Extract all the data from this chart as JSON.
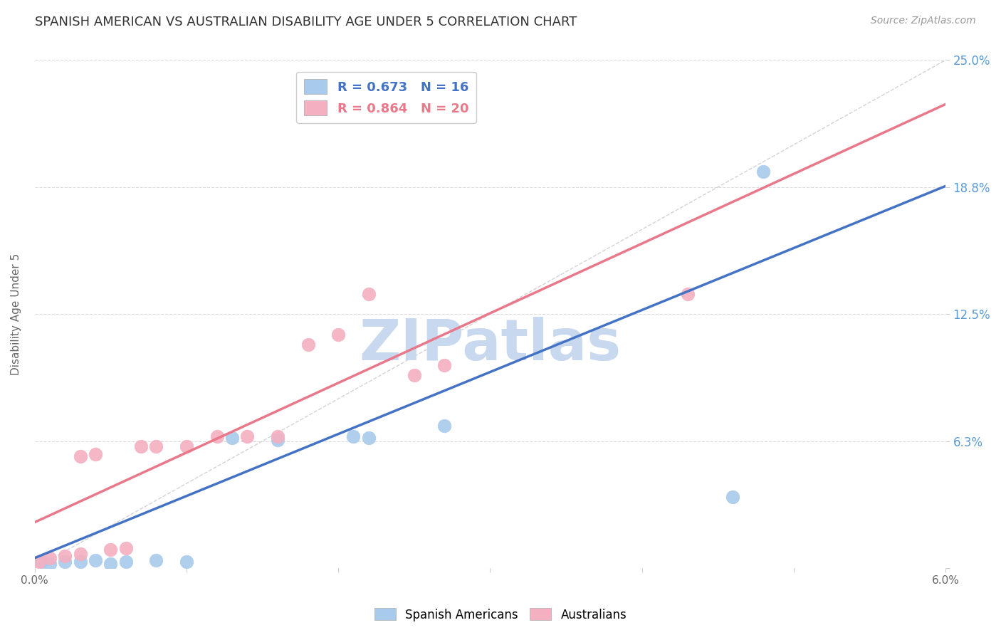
{
  "title": "SPANISH AMERICAN VS AUSTRALIAN DISABILITY AGE UNDER 5 CORRELATION CHART",
  "source": "Source: ZipAtlas.com",
  "ylabel": "Disability Age Under 5",
  "xlim": [
    0.0,
    0.06
  ],
  "ylim": [
    0.0,
    0.25
  ],
  "xtick_values": [
    0.0,
    0.01,
    0.02,
    0.03,
    0.04,
    0.05,
    0.06
  ],
  "xticklabels": [
    "0.0%",
    "",
    "",
    "",
    "",
    "",
    "6.0%"
  ],
  "ytick_values": [
    0.0,
    0.0625,
    0.125,
    0.1875,
    0.25
  ],
  "ytick_labels": [
    "",
    "6.3%",
    "12.5%",
    "18.8%",
    "25.0%"
  ],
  "sa_x": [
    0.0005,
    0.001,
    0.002,
    0.003,
    0.004,
    0.005,
    0.006,
    0.008,
    0.01,
    0.013,
    0.016,
    0.021,
    0.022,
    0.027,
    0.046,
    0.048
  ],
  "sa_y": [
    0.003,
    0.002,
    0.003,
    0.003,
    0.004,
    0.002,
    0.003,
    0.004,
    0.003,
    0.064,
    0.063,
    0.065,
    0.064,
    0.07,
    0.035,
    0.195
  ],
  "au_x": [
    0.0003,
    0.001,
    0.002,
    0.003,
    0.003,
    0.004,
    0.005,
    0.006,
    0.007,
    0.008,
    0.01,
    0.012,
    0.014,
    0.016,
    0.018,
    0.02,
    0.022,
    0.025,
    0.027,
    0.043
  ],
  "au_y": [
    0.003,
    0.005,
    0.006,
    0.007,
    0.055,
    0.056,
    0.009,
    0.01,
    0.06,
    0.06,
    0.06,
    0.065,
    0.065,
    0.065,
    0.11,
    0.115,
    0.135,
    0.095,
    0.1,
    0.135
  ],
  "blue_scatter_color": "#a8caec",
  "pink_scatter_color": "#f4afc0",
  "blue_line_color": "#4472c4",
  "pink_line_color": "#e8788a",
  "ref_line_color": "#c8c8c8",
  "legend_blue_R": "0.673",
  "legend_blue_N": "16",
  "legend_pink_R": "0.864",
  "legend_pink_N": "20",
  "watermark": "ZIPatlas",
  "watermark_blue": "#c8d8ee",
  "title_fontsize": 13,
  "axis_label_fontsize": 11,
  "tick_fontsize": 11,
  "legend_fontsize": 13,
  "source_fontsize": 10,
  "bg_color": "#ffffff",
  "grid_color": "#dcdcdc",
  "axis_label_color": "#666666",
  "right_tick_color": "#5b9bd5"
}
